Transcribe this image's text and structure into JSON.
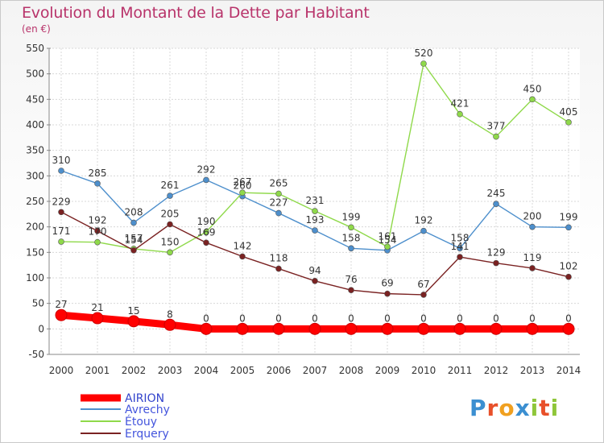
{
  "title": "Evolution du Montant de la Dette par Habitant",
  "subtitle": "(en €)",
  "logo": "Proxiti",
  "chart_data": {
    "type": "line",
    "x": [
      "2000",
      "2001",
      "2002",
      "2003",
      "2004",
      "2005",
      "2006",
      "2007",
      "2008",
      "2009",
      "2010",
      "2011",
      "2012",
      "2013",
      "2014"
    ],
    "ylim": [
      -50,
      550
    ],
    "yticks": [
      -50,
      0,
      50,
      100,
      150,
      200,
      250,
      300,
      350,
      400,
      450,
      500,
      550
    ],
    "grid": true,
    "legend_position": "bottom-left",
    "series": [
      {
        "name": "AIRION",
        "color": "#ff0000",
        "values": [
          27,
          21,
          15,
          8,
          0,
          0,
          0,
          0,
          0,
          0,
          0,
          0,
          0,
          0,
          0
        ]
      },
      {
        "name": "Avrechy",
        "color": "#4d8fcc",
        "values": [
          310,
          285,
          208,
          261,
          292,
          260,
          227,
          193,
          158,
          154,
          192,
          158,
          245,
          200,
          199
        ]
      },
      {
        "name": "Étouy",
        "color": "#8fd94a",
        "values": [
          171,
          170,
          157,
          150,
          190,
          267,
          265,
          231,
          199,
          161,
          520,
          421,
          377,
          450,
          405
        ]
      },
      {
        "name": "Erquery",
        "color": "#7a2222",
        "values": [
          229,
          192,
          154,
          205,
          169,
          142,
          118,
          94,
          76,
          69,
          67,
          141,
          129,
          119,
          102
        ]
      }
    ]
  }
}
